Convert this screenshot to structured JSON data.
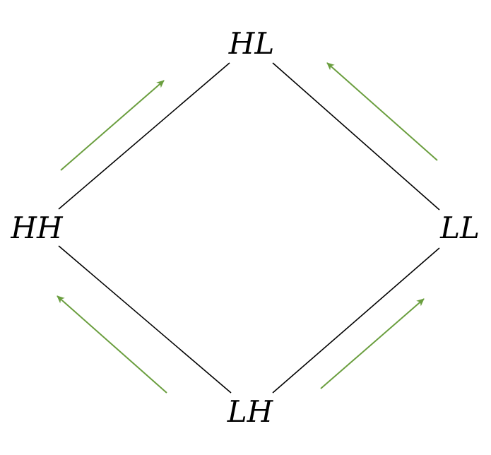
{
  "diagram": {
    "nodes": {
      "top": "HL",
      "left": "HH",
      "right": "LL",
      "bottom": "LH"
    },
    "edge_color": "#000000",
    "arrow_color": "#6a9e3e",
    "arrows": [
      {
        "id": "hh-to-hl",
        "direction": "up-right"
      },
      {
        "id": "ll-to-hl",
        "direction": "up-left"
      },
      {
        "id": "lh-to-hh",
        "direction": "up-left"
      },
      {
        "id": "lh-to-ll",
        "direction": "up-right"
      }
    ]
  }
}
